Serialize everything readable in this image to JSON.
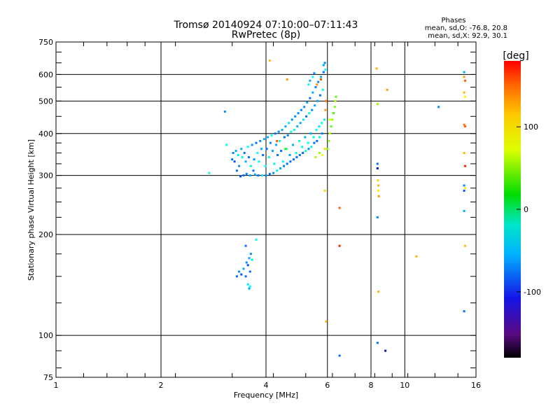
{
  "chart_data": {
    "type": "scatter",
    "title": "Tromsø 20140924 07:10:00–07:11:43",
    "subtitle": "RwPretec (8p)",
    "xlabel": "Frequency [MHz]",
    "ylabel": "Stationary phase Virtual Height [km]",
    "x_scale": "log",
    "y_scale": "log",
    "xlim": [
      1,
      16
    ],
    "ylim": [
      75,
      750
    ],
    "x_ticks": [
      1,
      2,
      4,
      6,
      8,
      10,
      16
    ],
    "x_tick_labels": [
      "1",
      "2",
      "4",
      "6",
      "8",
      "10",
      "16"
    ],
    "y_ticks": [
      75,
      100,
      200,
      300,
      400,
      500,
      600,
      750
    ],
    "y_tick_labels": [
      "75",
      "100",
      "200",
      "300",
      "400",
      "500",
      "600",
      "750"
    ],
    "grid": true,
    "stats": {
      "heading": "Phases",
      "line_o": "mean, sd,O: -76.8, 20.8",
      "line_x": "mean, sd,X:  92.9, 30.1"
    },
    "colorbar": {
      "label": "[deg]",
      "range": [
        -180,
        180
      ],
      "ticks": [
        100,
        0,
        -100
      ],
      "tick_labels": [
        "100",
        "0",
        "-100"
      ],
      "colormap": "rainbow"
    },
    "points": [
      [
        2.75,
        305,
        -60
      ],
      [
        3.05,
        465,
        -110
      ],
      [
        3.08,
        370,
        -70
      ],
      [
        3.2,
        335,
        -120
      ],
      [
        3.22,
        350,
        -110
      ],
      [
        3.25,
        330,
        -130
      ],
      [
        3.28,
        355,
        -100
      ],
      [
        3.3,
        310,
        -120
      ],
      [
        3.33,
        345,
        -80
      ],
      [
        3.35,
        320,
        -110
      ],
      [
        3.38,
        298,
        -130
      ],
      [
        3.4,
        360,
        -100
      ],
      [
        3.42,
        340,
        -60
      ],
      [
        3.45,
        300,
        -120
      ],
      [
        3.47,
        350,
        -120
      ],
      [
        3.5,
        330,
        -100
      ],
      [
        3.52,
        303,
        -110
      ],
      [
        3.55,
        365,
        -70
      ],
      [
        3.57,
        340,
        -120
      ],
      [
        3.6,
        300,
        -100
      ],
      [
        3.62,
        320,
        -60
      ],
      [
        3.65,
        370,
        -110
      ],
      [
        3.68,
        310,
        -120
      ],
      [
        3.7,
        335,
        -110
      ],
      [
        3.72,
        302,
        -100
      ],
      [
        3.75,
        375,
        -120
      ],
      [
        3.78,
        350,
        -70
      ],
      [
        3.8,
        300,
        -120
      ],
      [
        3.82,
        330,
        -60
      ],
      [
        3.85,
        380,
        -110
      ],
      [
        3.88,
        360,
        -100
      ],
      [
        3.9,
        300,
        -80
      ],
      [
        3.92,
        345,
        -120
      ],
      [
        3.95,
        385,
        -100
      ],
      [
        3.98,
        320,
        -70
      ],
      [
        4.0,
        300,
        -110
      ],
      [
        4.02,
        360,
        -120
      ],
      [
        4.05,
        390,
        -100
      ],
      [
        4.08,
        340,
        -60
      ],
      [
        4.1,
        303,
        -120
      ],
      [
        4.12,
        375,
        -110
      ],
      [
        4.15,
        395,
        -70
      ],
      [
        4.18,
        355,
        -100
      ],
      [
        4.2,
        305,
        -110
      ],
      [
        4.22,
        325,
        -60
      ],
      [
        4.25,
        400,
        -120
      ],
      [
        4.28,
        370,
        -100
      ],
      [
        4.3,
        310,
        -80
      ],
      [
        4.32,
        345,
        -120
      ],
      [
        4.35,
        405,
        -110
      ],
      [
        4.38,
        380,
        -60
      ],
      [
        4.4,
        315,
        -100
      ],
      [
        4.42,
        355,
        -120
      ],
      [
        4.45,
        410,
        -100
      ],
      [
        4.48,
        330,
        -70
      ],
      [
        4.5,
        320,
        -110
      ],
      [
        4.52,
        390,
        -120
      ],
      [
        4.55,
        420,
        -100
      ],
      [
        4.58,
        360,
        -60
      ],
      [
        4.6,
        325,
        -120
      ],
      [
        4.62,
        395,
        -110
      ],
      [
        4.65,
        430,
        -80
      ],
      [
        4.68,
        345,
        -100
      ],
      [
        4.7,
        330,
        -120
      ],
      [
        4.72,
        405,
        -60
      ],
      [
        4.75,
        440,
        -110
      ],
      [
        4.78,
        370,
        -100
      ],
      [
        4.8,
        335,
        -120
      ],
      [
        4.82,
        410,
        -70
      ],
      [
        4.85,
        450,
        -110
      ],
      [
        4.88,
        350,
        -60
      ],
      [
        4.9,
        340,
        -120
      ],
      [
        4.92,
        420,
        -100
      ],
      [
        4.95,
        460,
        -110
      ],
      [
        4.98,
        380,
        -60
      ],
      [
        5.0,
        345,
        -120
      ],
      [
        5.02,
        430,
        -100
      ],
      [
        5.05,
        470,
        -110
      ],
      [
        5.08,
        365,
        -60
      ],
      [
        5.1,
        350,
        -120
      ],
      [
        5.12,
        440,
        -80
      ],
      [
        5.15,
        480,
        -110
      ],
      [
        5.18,
        390,
        -100
      ],
      [
        5.2,
        355,
        -60
      ],
      [
        5.22,
        450,
        -120
      ],
      [
        5.25,
        495,
        -100
      ],
      [
        5.28,
        375,
        -70
      ],
      [
        5.3,
        360,
        -110
      ],
      [
        5.32,
        460,
        -60
      ],
      [
        5.35,
        510,
        -120
      ],
      [
        5.38,
        400,
        -100
      ],
      [
        5.4,
        365,
        -80
      ],
      [
        5.42,
        470,
        -110
      ],
      [
        5.45,
        530,
        -100
      ],
      [
        5.48,
        390,
        -60
      ],
      [
        5.5,
        375,
        -120
      ],
      [
        5.52,
        485,
        -100
      ],
      [
        5.55,
        550,
        -110
      ],
      [
        5.58,
        410,
        -60
      ],
      [
        5.6,
        380,
        -120
      ],
      [
        5.62,
        500,
        -100
      ],
      [
        5.65,
        570,
        -110
      ],
      [
        5.68,
        420,
        -80
      ],
      [
        5.7,
        390,
        -60
      ],
      [
        5.72,
        520,
        -120
      ],
      [
        5.75,
        590,
        -100
      ],
      [
        5.78,
        430,
        -70
      ],
      [
        5.8,
        400,
        -110
      ],
      [
        5.82,
        540,
        -60
      ],
      [
        5.85,
        610,
        -120
      ],
      [
        5.88,
        440,
        -80
      ],
      [
        5.35,
        575,
        -100
      ],
      [
        5.5,
        605,
        -110
      ],
      [
        5.6,
        560,
        130
      ],
      [
        5.75,
        580,
        150
      ],
      [
        5.85,
        640,
        -100
      ],
      [
        5.9,
        650,
        -110
      ],
      [
        5.92,
        620,
        -70
      ],
      [
        5.3,
        560,
        -60
      ],
      [
        5.45,
        590,
        -70
      ],
      [
        5.55,
        340,
        70
      ],
      [
        4.3,
        380,
        150
      ],
      [
        4.55,
        360,
        20
      ],
      [
        5.7,
        350,
        60
      ],
      [
        5.8,
        345,
        90
      ],
      [
        5.9,
        360,
        110
      ],
      [
        5.95,
        500,
        140
      ],
      [
        5.92,
        470,
        130
      ],
      [
        6.1,
        400,
        70
      ],
      [
        6.15,
        420,
        40
      ],
      [
        6.2,
        440,
        60
      ],
      [
        6.25,
        460,
        30
      ],
      [
        6.3,
        480,
        50
      ],
      [
        6.32,
        500,
        70
      ],
      [
        6.35,
        515,
        40
      ],
      [
        6.05,
        380,
        60
      ],
      [
        6.0,
        360,
        50
      ],
      [
        6.1,
        440,
        80
      ],
      [
        4.1,
        660,
        120
      ],
      [
        4.6,
        580,
        130
      ],
      [
        5.9,
        270,
        110
      ],
      [
        5.95,
        110,
        120
      ],
      [
        6.5,
        240,
        150
      ],
      [
        6.5,
        185,
        170
      ],
      [
        6.5,
        87,
        -120
      ],
      [
        3.3,
        150,
        -120
      ],
      [
        3.35,
        155,
        -110
      ],
      [
        3.4,
        152,
        -130
      ],
      [
        3.45,
        158,
        -100
      ],
      [
        3.5,
        150,
        -120
      ],
      [
        3.52,
        165,
        -110
      ],
      [
        3.55,
        162,
        -130
      ],
      [
        3.58,
        170,
        -100
      ],
      [
        3.6,
        155,
        -120
      ],
      [
        3.62,
        175,
        -110
      ],
      [
        3.65,
        168,
        -60
      ],
      [
        3.5,
        185,
        -120
      ],
      [
        3.55,
        142,
        -80
      ],
      [
        3.58,
        138,
        -100
      ],
      [
        3.6,
        140,
        -70
      ],
      [
        3.75,
        193,
        -60
      ],
      [
        8.3,
        625,
        120
      ],
      [
        8.35,
        490,
        60
      ],
      [
        8.9,
        540,
        130
      ],
      [
        8.35,
        325,
        -120
      ],
      [
        8.35,
        315,
        -150
      ],
      [
        8.38,
        290,
        110
      ],
      [
        8.4,
        280,
        120
      ],
      [
        8.4,
        270,
        100
      ],
      [
        8.42,
        260,
        130
      ],
      [
        8.35,
        225,
        -110
      ],
      [
        8.4,
        135,
        120
      ],
      [
        8.35,
        95,
        -120
      ],
      [
        8.8,
        90,
        -150
      ],
      [
        10.8,
        172,
        120
      ],
      [
        12.5,
        480,
        -110
      ],
      [
        14.8,
        610,
        -100
      ],
      [
        14.8,
        590,
        130
      ],
      [
        14.9,
        575,
        150
      ],
      [
        14.8,
        530,
        120
      ],
      [
        14.9,
        515,
        100
      ],
      [
        14.8,
        425,
        140
      ],
      [
        14.9,
        420,
        150
      ],
      [
        14.8,
        350,
        120
      ],
      [
        14.9,
        320,
        170
      ],
      [
        14.8,
        280,
        -110
      ],
      [
        14.9,
        275,
        100
      ],
      [
        14.8,
        270,
        -130
      ],
      [
        14.8,
        235,
        -100
      ],
      [
        14.9,
        185,
        120
      ],
      [
        14.8,
        118,
        -120
      ]
    ]
  }
}
